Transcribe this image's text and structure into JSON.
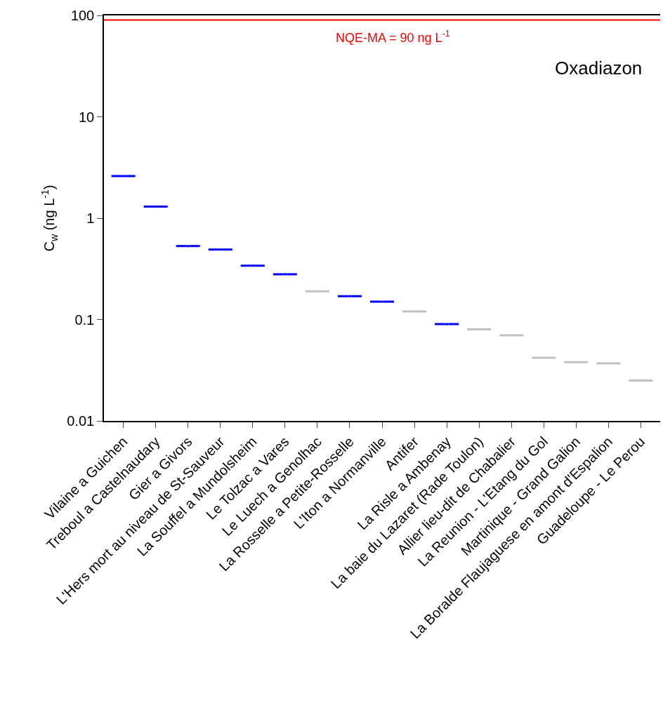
{
  "chart_data": {
    "type": "scatter",
    "ylabel": "C$_{w}$ (ng L$^{-1}$)",
    "log": "y",
    "categories": [
      "Vilaine a Guichen",
      "Treboul a Castelnaudary",
      "Gier a Givors",
      "L'Hers mort au niveau de St-Sauveur",
      "La Souffel a Mundolsheim",
      "Le Tolzac a Vares",
      "Le Luech a Genolhac",
      "La Rosselle a Petite-Rosselle",
      "L'Iton a Normanville",
      "Antifer",
      "La Risle a Ambenay",
      "La baie du Lazaret (Rade Toulon)",
      "Allier lieu-dit de Chabalier",
      "La Reunion - L'Etang du Gol",
      "Martinique - Grand Galion",
      "La Boralde Flaujaguese en amont d'Espalion",
      "Guadeloupe - Le Perou"
    ],
    "values": [
      2.6,
      1.3,
      0.53,
      0.49,
      0.34,
      0.28,
      0.19,
      0.17,
      0.15,
      0.12,
      0.09,
      0.08,
      0.07,
      0.042,
      0.038,
      0.037,
      0.025
    ],
    "colors": [
      "#0000ff",
      "#0000ff",
      "#0000ff",
      "#0000ff",
      "#0000ff",
      "#0000ff",
      "#c0c0c0",
      "#0000ff",
      "#0000ff",
      "#c0c0c0",
      "#0000ff",
      "#c0c0c0",
      "#c0c0c0",
      "#c0c0c0",
      "#c0c0c0",
      "#c0c0c0",
      "#c0c0c0"
    ],
    "ylim": [
      0.01,
      100
    ],
    "yticks": [
      0.01,
      0.1,
      1,
      10,
      100
    ],
    "ref_lines": [
      {
        "axis": "y",
        "value": 90,
        "label": "NQE-MA = 90 ng L$^{-1}$",
        "color": "#ff0000"
      }
    ],
    "annotations": [
      "Oxadiazon"
    ],
    "grid": false
  }
}
